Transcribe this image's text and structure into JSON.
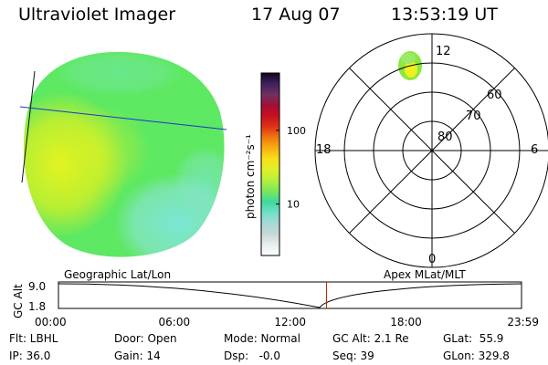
{
  "header": {
    "title": "Ultraviolet Imager",
    "date": "17 Aug 07",
    "time": "13:53:19 UT"
  },
  "colorbar": {
    "unit_label": "photon cm⁻²s⁻¹",
    "scale": "log",
    "range": [
      2,
      600
    ],
    "tick_labels": [
      "100",
      "10"
    ],
    "stops": [
      "#ffffff",
      "#e8eef0",
      "#c8d8d8",
      "#a8d8d8",
      "#70e0c8",
      "#40d8a0",
      "#7ce85a",
      "#b4f03c",
      "#e0f028",
      "#f8e018",
      "#f8b010",
      "#f07810",
      "#e03018",
      "#c81020",
      "#a01038",
      "#703060",
      "#402060",
      "#100818"
    ]
  },
  "earth_image": {
    "colors": {
      "base": "#5ce860",
      "bright": "#e6f41c",
      "dim": "#7ae6d6"
    }
  },
  "polar_plot": {
    "lat_labels": [
      "80",
      "70",
      "60"
    ],
    "mlt_labels": {
      "top": "12",
      "bottom": "0",
      "left": "18",
      "right": "6"
    },
    "blob_colors": [
      "#8ce840",
      "#f0f020"
    ]
  },
  "orbit": {
    "ylabel": "GC Alt",
    "yticks": [
      "9.0",
      "1.8"
    ],
    "xticks": [
      "00:00",
      "06:00",
      "12:00",
      "18:00",
      "23:59"
    ],
    "left_label": "Geographic Lat/Lon",
    "right_label": "Apex MLat/MLT",
    "marker_color": "#cc2200",
    "marker_time": "13:53"
  },
  "info": {
    "row1": [
      "Flt: LBHL",
      "Door: Open",
      "Mode: Normal",
      "GC Alt: 2.1 Re",
      "GLat:  55.9"
    ],
    "row2": [
      "IP: 36.0",
      "Gain: 14",
      "Dsp:   -0.0",
      "Seq: 39",
      "GLon: 329.8"
    ]
  }
}
